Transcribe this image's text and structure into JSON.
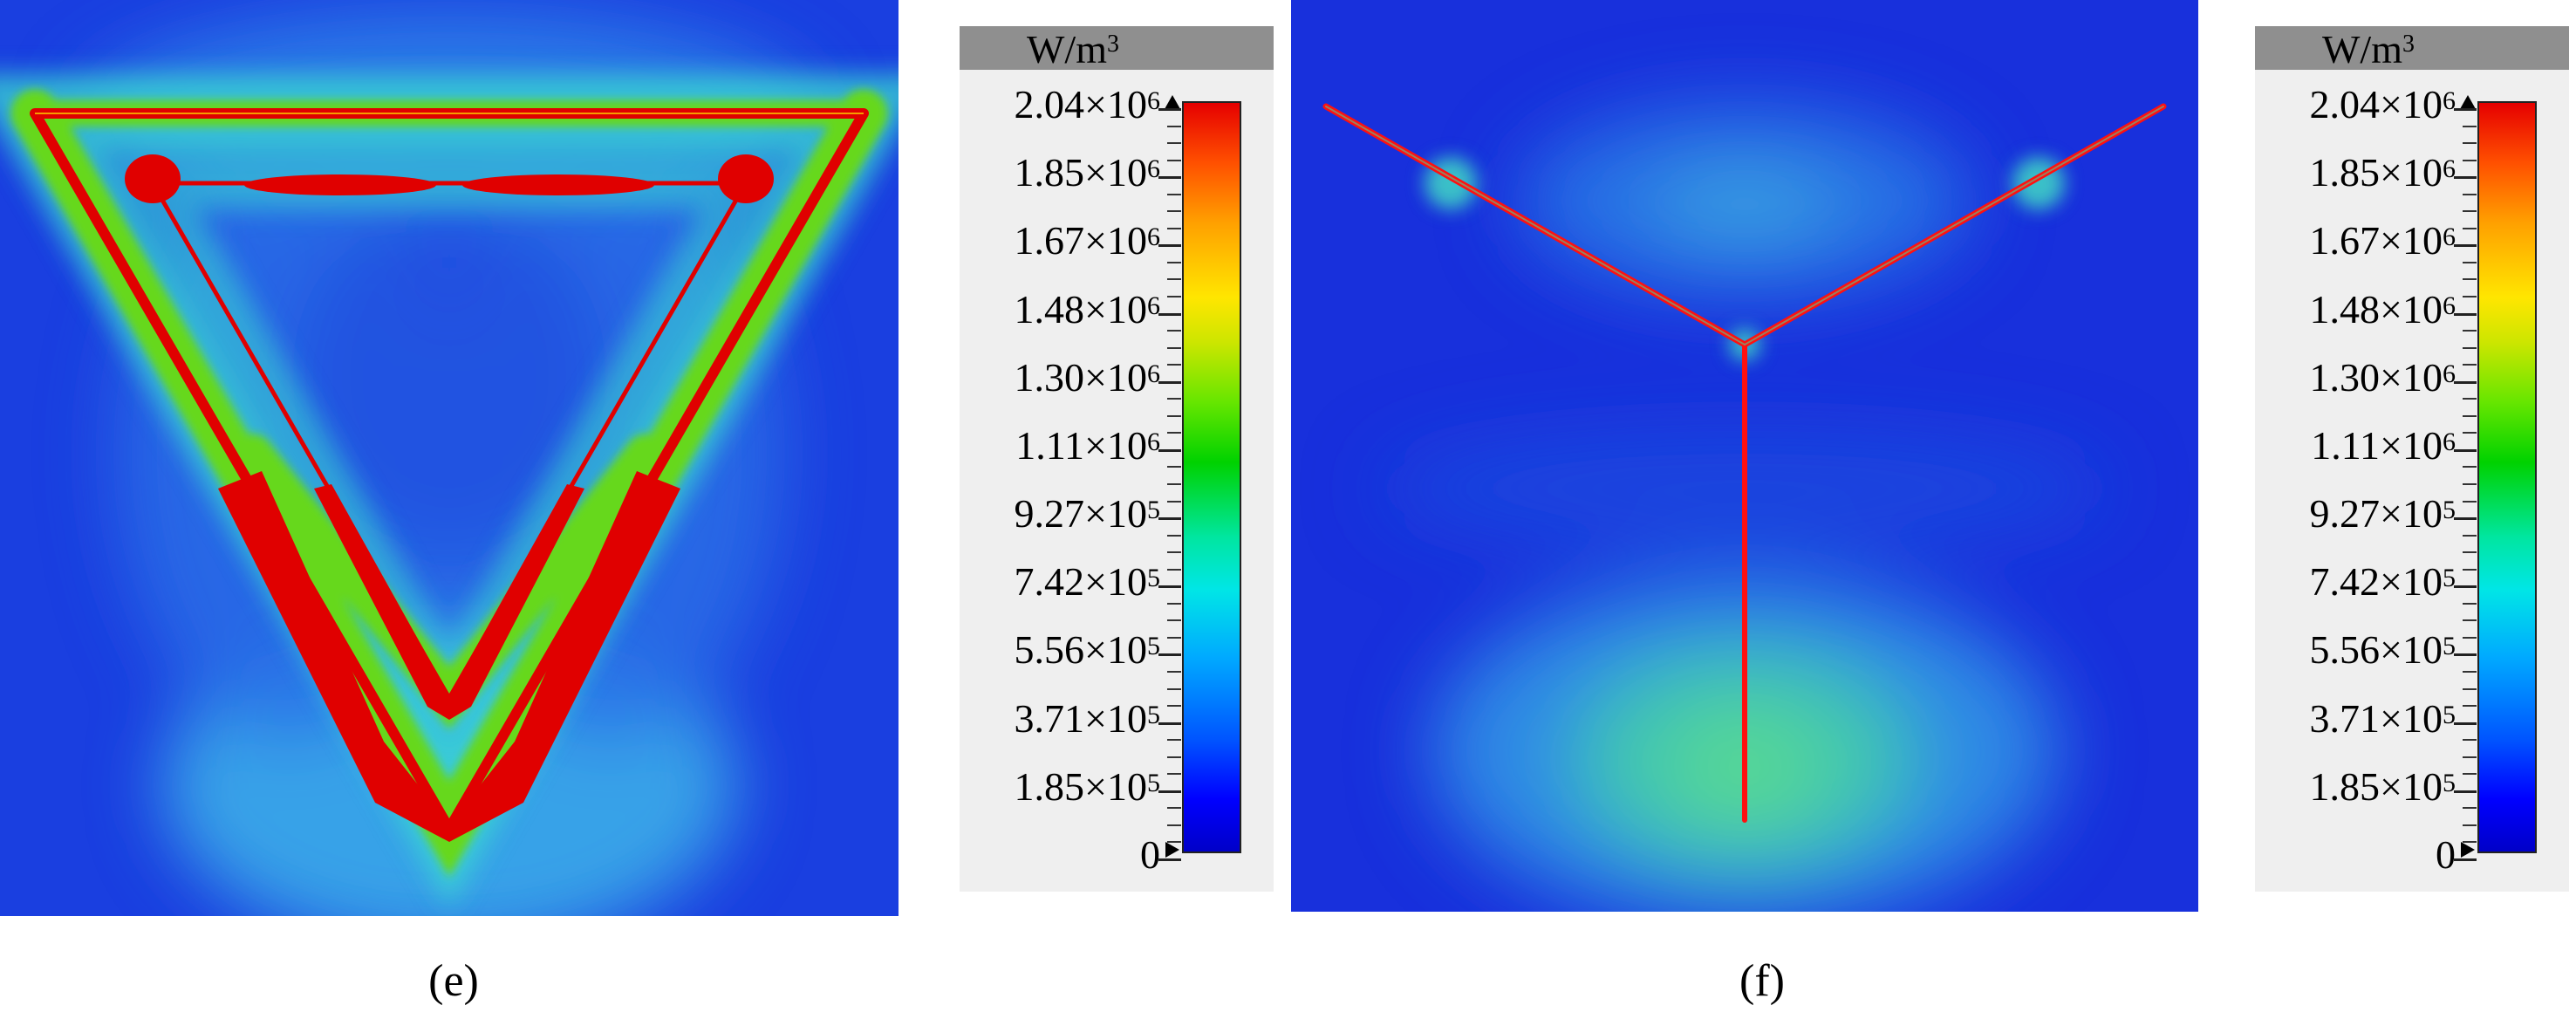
{
  "panels": [
    {
      "id": "e",
      "caption": "(e)"
    },
    {
      "id": "f",
      "caption": "(f)"
    }
  ],
  "colorbar": {
    "unit_base": "W/m",
    "unit_exp": "3",
    "ticks": [
      {
        "mantissa": "2.04",
        "times": "×",
        "base": "10",
        "exp": "6"
      },
      {
        "mantissa": "1.85",
        "times": "×",
        "base": "10",
        "exp": "6"
      },
      {
        "mantissa": "1.67",
        "times": "×",
        "base": "10",
        "exp": "6"
      },
      {
        "mantissa": "1.48",
        "times": "×",
        "base": "10",
        "exp": "6"
      },
      {
        "mantissa": "1.30",
        "times": "×",
        "base": "10",
        "exp": "6"
      },
      {
        "mantissa": "1.11",
        "times": "×",
        "base": "10",
        "exp": "6"
      },
      {
        "mantissa": "9.27",
        "times": "×",
        "base": "10",
        "exp": "5"
      },
      {
        "mantissa": "7.42",
        "times": "×",
        "base": "10",
        "exp": "5"
      },
      {
        "mantissa": "5.56",
        "times": "×",
        "base": "10",
        "exp": "5"
      },
      {
        "mantissa": "3.71",
        "times": "×",
        "base": "10",
        "exp": "5"
      },
      {
        "mantissa": "1.85",
        "times": "×",
        "base": "10",
        "exp": "5"
      },
      {
        "mantissa": "0",
        "times": "",
        "base": "",
        "exp": ""
      }
    ]
  }
}
